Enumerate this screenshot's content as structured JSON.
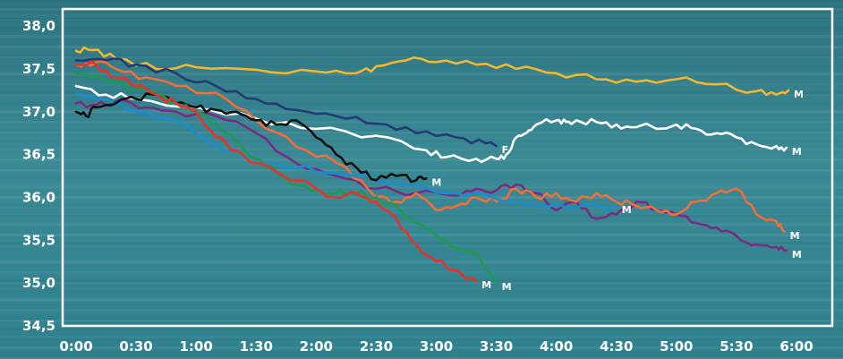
{
  "chart_data": {
    "type": "line",
    "title": "",
    "xlabel": "",
    "ylabel": "",
    "grid": false,
    "xlim": [
      0,
      360
    ],
    "ylim": [
      34.5,
      38.2
    ],
    "x_ticks": [
      0,
      30,
      60,
      90,
      120,
      150,
      180,
      210,
      240,
      270,
      300,
      330,
      360
    ],
    "x_tick_labels": [
      "0:00",
      "0:30",
      "1:00",
      "1:30",
      "2:00",
      "2:30",
      "3:00",
      "3:30",
      "4:00",
      "4:30",
      "5:00",
      "5:30",
      "6:00"
    ],
    "y_ticks": [
      34.5,
      35.0,
      35.5,
      36.0,
      36.5,
      37.0,
      37.5,
      38.0
    ],
    "y_tick_labels": [
      "34,5",
      "35,0",
      "35,5",
      "36,0",
      "36,5",
      "37,0",
      "37,5",
      "38,0"
    ],
    "colors": {
      "background": "#2f7f8c",
      "frame": "#ffffff",
      "text": "#ffffff"
    },
    "series": [
      {
        "label": "M",
        "color": "#f2b631",
        "x": [
          0,
          8,
          20,
          40,
          60,
          90,
          120,
          140,
          150,
          165,
          180,
          200,
          220,
          240,
          260,
          280,
          300,
          320,
          340,
          350,
          356
        ],
        "values": [
          37.71,
          37.72,
          37.62,
          37.5,
          37.52,
          37.49,
          37.47,
          37.45,
          37.53,
          37.6,
          37.58,
          37.55,
          37.5,
          37.45,
          37.38,
          37.35,
          37.38,
          37.32,
          37.24,
          37.2,
          37.25
        ]
      },
      {
        "label": "F",
        "color": "#223c72",
        "x": [
          0,
          15,
          30,
          50,
          70,
          90,
          110,
          130,
          150,
          170,
          190,
          205,
          210
        ],
        "values": [
          37.6,
          37.6,
          37.55,
          37.45,
          37.3,
          37.15,
          37.02,
          36.95,
          36.86,
          36.75,
          36.7,
          36.63,
          36.6
        ]
      },
      {
        "label": "M",
        "color": "#ffffff",
        "x": [
          0,
          15,
          30,
          60,
          90,
          120,
          150,
          175,
          185,
          200,
          210,
          215,
          220,
          225,
          230,
          240,
          245,
          250,
          260,
          270,
          280,
          300,
          310,
          320,
          330,
          340,
          350,
          355
        ],
        "values": [
          37.3,
          37.2,
          37.15,
          37.05,
          36.92,
          36.8,
          36.72,
          36.55,
          36.47,
          36.45,
          36.45,
          36.5,
          36.7,
          36.75,
          36.85,
          36.9,
          36.88,
          36.9,
          36.88,
          36.85,
          36.82,
          36.85,
          36.8,
          36.75,
          36.7,
          36.62,
          36.6,
          36.58
        ]
      },
      {
        "label": "M",
        "color": "#7b2c82",
        "x": [
          0,
          10,
          20,
          35,
          50,
          70,
          90,
          110,
          130,
          150,
          170,
          190,
          200,
          210,
          220,
          230,
          240,
          250,
          260,
          270,
          280,
          290,
          300,
          310,
          320,
          330,
          340,
          350,
          355
        ],
        "values": [
          37.1,
          37.08,
          37.12,
          37.05,
          37.0,
          36.95,
          36.75,
          36.4,
          36.25,
          36.1,
          36.05,
          36.02,
          36.1,
          36.08,
          36.15,
          36.05,
          35.85,
          35.95,
          35.75,
          35.8,
          35.95,
          35.85,
          35.8,
          35.7,
          35.65,
          35.55,
          35.45,
          35.42,
          35.38
        ]
      },
      {
        "label": "M",
        "color": "#f06e3a",
        "x": [
          0,
          10,
          20,
          35,
          55,
          75,
          95,
          115,
          135,
          150,
          160,
          170,
          180,
          190,
          200,
          210,
          220,
          230,
          240,
          250,
          260,
          270,
          280,
          290,
          300,
          310,
          320,
          330,
          340,
          350,
          354
        ],
        "values": [
          37.55,
          37.58,
          37.5,
          37.4,
          37.3,
          37.15,
          36.8,
          36.55,
          36.35,
          36.0,
          35.95,
          36.05,
          35.85,
          35.9,
          36.0,
          35.95,
          36.1,
          36.0,
          36.05,
          35.95,
          36.05,
          35.95,
          35.9,
          35.85,
          35.8,
          35.95,
          36.05,
          36.1,
          35.8,
          35.72,
          35.6
        ]
      },
      {
        "label": "M",
        "color": "#1a8cd0",
        "x": [
          0,
          15,
          30,
          50,
          70,
          90,
          110,
          130,
          150,
          170,
          190,
          210,
          230,
          250,
          270
        ],
        "values": [
          37.22,
          37.15,
          37.0,
          36.9,
          36.6,
          36.45,
          36.35,
          36.28,
          36.2,
          36.15,
          36.05,
          35.98,
          35.92,
          35.88,
          35.9
        ]
      },
      {
        "label": "M",
        "color": "#111111",
        "x": [
          0,
          5,
          10,
          20,
          30,
          40,
          50,
          60,
          70,
          80,
          90,
          100,
          110,
          120,
          130,
          140,
          150,
          160,
          170,
          175
        ],
        "values": [
          37.0,
          36.95,
          37.05,
          37.1,
          37.15,
          37.2,
          37.1,
          37.05,
          37.02,
          37.0,
          36.9,
          36.85,
          36.9,
          36.7,
          36.5,
          36.35,
          36.2,
          36.25,
          36.2,
          36.22
        ]
      },
      {
        "label": "M",
        "color": "#1e9a4e",
        "x": [
          0,
          10,
          20,
          30,
          40,
          50,
          60,
          70,
          80,
          90,
          100,
          110,
          120,
          130,
          140,
          150,
          160,
          170,
          180,
          190,
          200,
          210
        ],
        "values": [
          37.45,
          37.42,
          37.35,
          37.28,
          37.2,
          37.1,
          37.0,
          36.85,
          36.65,
          36.45,
          36.3,
          36.15,
          36.1,
          36.05,
          36.05,
          36.0,
          35.9,
          35.7,
          35.55,
          35.4,
          35.35,
          35.0
        ]
      },
      {
        "label": "M",
        "color": "#e8312a",
        "x": [
          0,
          10,
          20,
          30,
          40,
          50,
          60,
          70,
          80,
          90,
          100,
          110,
          120,
          130,
          140,
          150,
          160,
          170,
          180,
          190,
          200
        ],
        "values": [
          37.55,
          37.55,
          37.4,
          37.3,
          37.2,
          37.1,
          37.0,
          36.7,
          36.55,
          36.4,
          36.3,
          36.2,
          36.1,
          36.0,
          36.05,
          35.95,
          35.75,
          35.45,
          35.25,
          35.15,
          35.02
        ]
      }
    ]
  }
}
